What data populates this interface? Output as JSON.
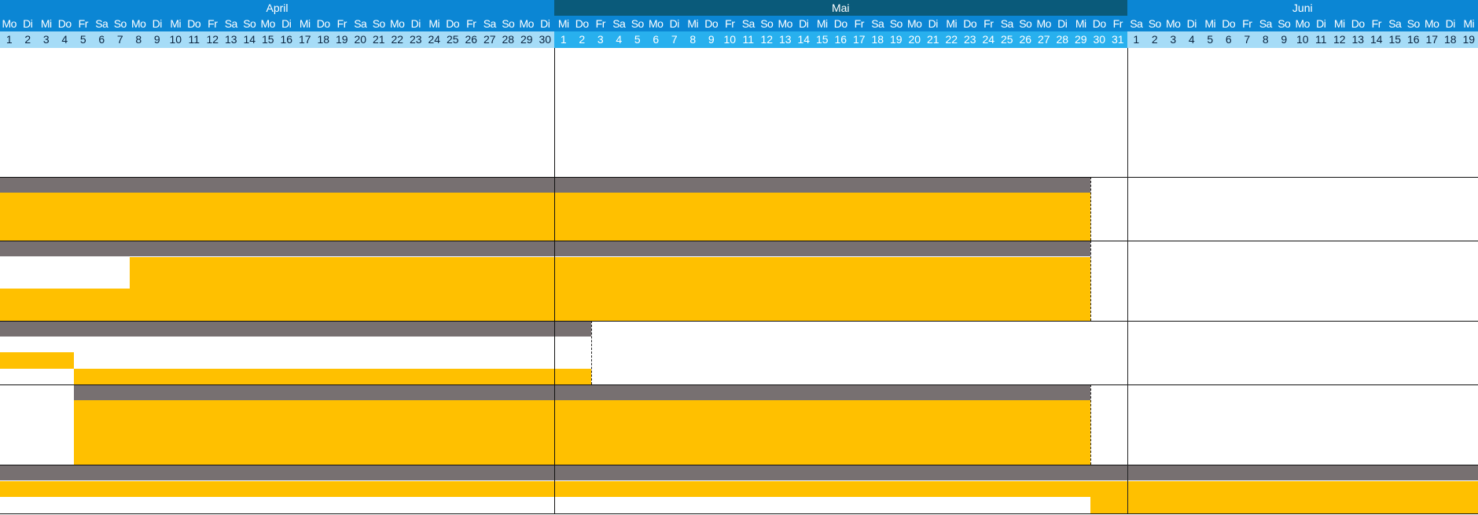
{
  "calendar": {
    "months": [
      {
        "name": "April",
        "days": 30,
        "first_weekday": 0,
        "color": "#0b86d4"
      },
      {
        "name": "Mai",
        "days": 31,
        "first_weekday": 2,
        "color": "#0a5a7a"
      },
      {
        "name": "Juni",
        "days": 19,
        "first_weekday": 5,
        "color": "#0b86d4"
      }
    ],
    "weekday_labels": [
      "Mo",
      "Di",
      "Mi",
      "Do",
      "Fr",
      "Sa",
      "So"
    ]
  },
  "colors": {
    "summary_bar": "#777071",
    "task_bar": "#ffc000",
    "weekday_row": "#0b86d4",
    "day_number_row_april_june": "#a6dcf7",
    "day_number_row_mai": "#28b0ee"
  },
  "timeline": {
    "groups": [
      {
        "summary": {
          "start": "2024-04-01",
          "end": "2024-05-29"
        },
        "tasks": [
          {
            "start": "2024-04-01",
            "end": "2024-05-29"
          }
        ]
      },
      {
        "summary": {
          "start": "2024-04-01",
          "end": "2024-05-29"
        },
        "tasks": [
          {
            "start": "2024-04-08",
            "end": "2024-05-29"
          },
          {
            "start": "2024-04-01",
            "end": "2024-05-29"
          }
        ]
      },
      {
        "summary": {
          "start": "2024-04-01",
          "end": "2024-05-02"
        },
        "tasks": [
          {
            "start": "2024-04-01",
            "end": "2024-04-04"
          },
          {
            "start": "2024-04-05",
            "end": "2024-05-02"
          }
        ]
      },
      {
        "summary": {
          "start": "2024-04-05",
          "end": "2024-05-29"
        },
        "tasks": [
          {
            "start": "2024-04-05",
            "end": "2024-05-29"
          }
        ]
      },
      {
        "summary": {
          "start": "2024-04-01",
          "end": "2024-06-19"
        },
        "tasks": [
          {
            "start": "2024-04-01",
            "end": "2024-06-19"
          },
          {
            "start": "2024-05-30",
            "end": "2024-06-19"
          }
        ]
      }
    ]
  }
}
